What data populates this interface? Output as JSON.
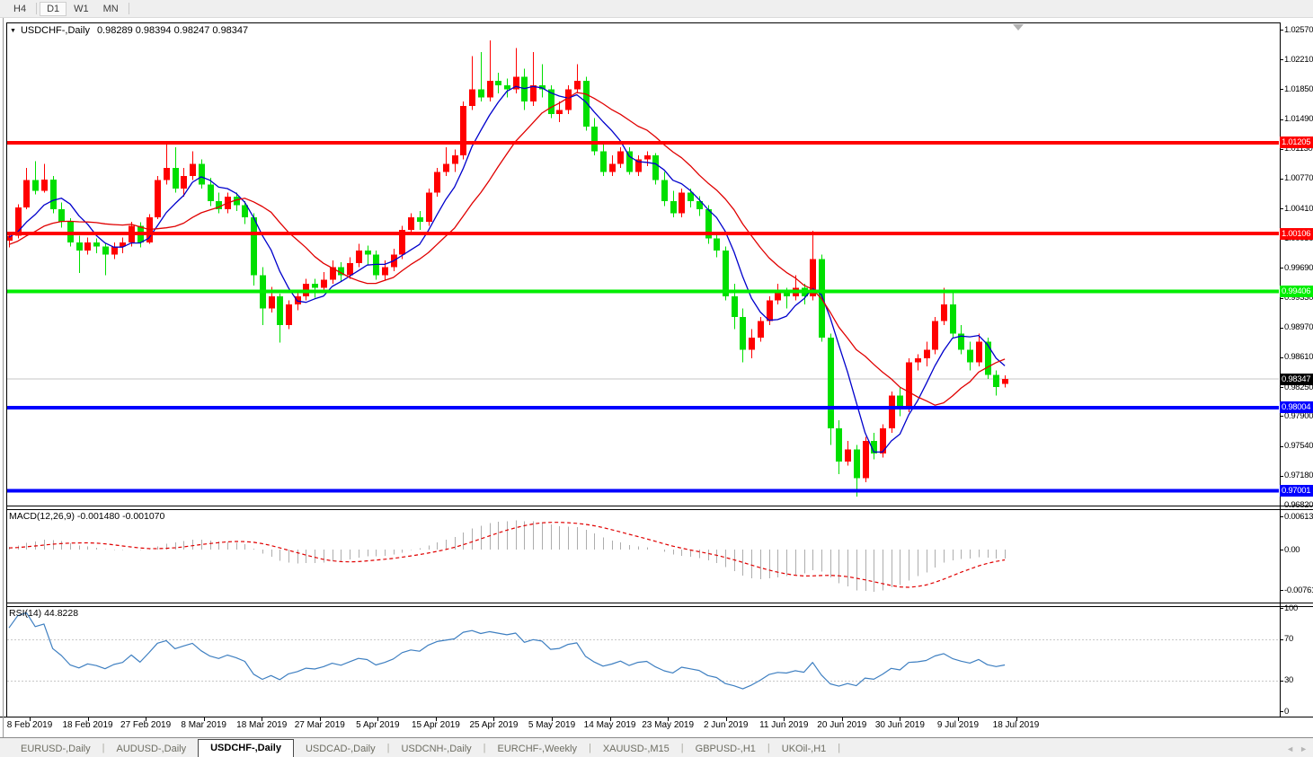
{
  "toolbar": {
    "timeframes": [
      {
        "label": "H4",
        "active": false
      },
      {
        "label": "D1",
        "active": true
      },
      {
        "label": "W1",
        "active": false
      },
      {
        "label": "MN",
        "active": false
      }
    ]
  },
  "chart": {
    "title_symbol": "USDCHF-,Daily",
    "title_ohlc": "0.98289 0.98394 0.98247 0.98347",
    "price_scale_ticks": [
      "1.02570",
      "1.02210",
      "1.01850",
      "1.01490",
      "1.01130",
      "1.00770",
      "1.00410",
      "1.00050",
      "0.99690",
      "0.99330",
      "0.98970",
      "0.98610",
      "0.98250",
      "0.97900",
      "0.97540",
      "0.97180",
      "0.96820"
    ],
    "levels": [
      {
        "value": "1.01205",
        "price": 1.01205,
        "color": "#FF0000",
        "text_color": "#FFFFFF"
      },
      {
        "value": "1.00106",
        "price": 1.00106,
        "color": "#FF0000",
        "text_color": "#FFFFFF"
      },
      {
        "value": "0.99406",
        "price": 0.99406,
        "color": "#00EE00",
        "text_color": "#FFFFFF"
      },
      {
        "value": "0.98004",
        "price": 0.98004,
        "color": "#0000FF",
        "text_color": "#FFFFFF"
      },
      {
        "value": "0.97001",
        "price": 0.97001,
        "color": "#0000FF",
        "text_color": "#FFFFFF"
      }
    ],
    "current_price": {
      "value": "0.98347",
      "price": 0.98347,
      "badge_bg": "#000000",
      "line_color": "#C4C4C4"
    },
    "time_scale_labels": [
      "8 Feb 2019",
      "18 Feb 2019",
      "27 Feb 2019",
      "8 Mar 2019",
      "18 Mar 2019",
      "27 Mar 2019",
      "5 Apr 2019",
      "15 Apr 2019",
      "25 Apr 2019",
      "5 May 2019",
      "14 May 2019",
      "23 May 2019",
      "2 Jun 2019",
      "11 Jun 2019",
      "20 Jun 2019",
      "30 Jun 2019",
      "9 Jul 2019",
      "18 Jul 2019"
    ],
    "macd": {
      "label": "MACD(12,26,9) -0.001480 -0.001070",
      "params": "12,26,9",
      "value": "-0.001480",
      "signal_value": "-0.001070",
      "scale_ticks": [
        {
          "label": "0.00613",
          "v": 0.00613
        },
        {
          "label": "0.00",
          "v": 0
        },
        {
          "label": "-0.00761",
          "v": -0.00761
        }
      ]
    },
    "rsi": {
      "label": "RSI(14) 44.8228",
      "period": "14",
      "value": "44.8228",
      "scale_ticks": [
        {
          "label": "100",
          "v": 100
        },
        {
          "label": "70",
          "v": 70
        },
        {
          "label": "30",
          "v": 30
        },
        {
          "label": "0",
          "v": 0
        }
      ],
      "dashed_levels": [
        70,
        30
      ]
    }
  },
  "chart_data": {
    "type": "candlestick",
    "symbol": "USDCHF-",
    "timeframe": "Daily",
    "title": "USDCHF-,Daily",
    "last_ohlc": {
      "open": 0.98289,
      "high": 0.98394,
      "low": 0.98247,
      "close": 0.98347
    },
    "bull_color": "#FF0000",
    "bear_color": "#00DF00",
    "ma_fast": {
      "type": "sma",
      "period": 6,
      "color": "#0000CC"
    },
    "ma_slow": {
      "type": "sma",
      "period": 14,
      "color": "#E00000"
    },
    "ylim": [
      0.9682,
      1.02646
    ],
    "x_labels": [
      "8 Feb 2019",
      "18 Feb 2019",
      "27 Feb 2019",
      "8 Mar 2019",
      "18 Mar 2019",
      "27 Mar 2019",
      "5 Apr 2019",
      "15 Apr 2019",
      "25 Apr 2019",
      "5 May 2019",
      "14 May 2019",
      "23 May 2019",
      "2 Jun 2019",
      "11 Jun 2019",
      "20 Jun 2019",
      "30 Jun 2019",
      "9 Jul 2019",
      "18 Jul 2019"
    ],
    "hlines": [
      {
        "price": 1.01205,
        "color": "#FF0000"
      },
      {
        "price": 1.00106,
        "color": "#FF0000"
      },
      {
        "price": 0.99406,
        "color": "#00EE00"
      },
      {
        "price": 0.98004,
        "color": "#0000FF"
      },
      {
        "price": 0.97001,
        "color": "#0000FF"
      }
    ],
    "macd_hist_color": "#ADADAD",
    "macd_signal_color": "#E00000",
    "macd_ylim": [
      -0.00972,
      0.00737
    ],
    "rsi_color": "#3E7FC1",
    "rsi_ylim": [
      0,
      100
    ],
    "candles": [
      [
        1.0002,
        1.0012,
        0.9994,
        1.0008
      ],
      [
        1.0008,
        1.0046,
        1.0005,
        1.0042
      ],
      [
        1.0042,
        1.009,
        1.004,
        1.0075
      ],
      [
        1.0075,
        1.0098,
        1.0058,
        1.0062
      ],
      [
        1.0062,
        1.0095,
        1.006,
        1.0076
      ],
      [
        1.0076,
        1.008,
        1.0035,
        1.004
      ],
      [
        1.004,
        1.0048,
        1.0018,
        1.0025
      ],
      [
        1.0025,
        1.0029,
        0.9995,
        1.0
      ],
      [
        1.0,
        1.0008,
        0.9963,
        0.999
      ],
      [
        0.999,
        1.0006,
        0.9985,
        1.0
      ],
      [
        1.0,
        1.0005,
        0.9987,
        0.9995
      ],
      [
        0.9995,
        0.9999,
        0.996,
        0.9985
      ],
      [
        0.9985,
        1.0,
        0.998,
        0.9995
      ],
      [
        0.9995,
        1.0006,
        0.9987,
        1.0
      ],
      [
        1.0,
        1.0025,
        0.9995,
        1.002
      ],
      [
        1.002,
        1.0024,
        0.9994,
        1.0
      ],
      [
        1.0,
        1.0034,
        0.9998,
        1.003
      ],
      [
        1.003,
        1.008,
        1.0028,
        1.0075
      ],
      [
        1.0075,
        1.012,
        1.007,
        1.009
      ],
      [
        1.009,
        1.0115,
        1.006,
        1.0065
      ],
      [
        1.0065,
        1.009,
        1.0055,
        1.008
      ],
      [
        1.008,
        1.011,
        1.0075,
        1.0095
      ],
      [
        1.0095,
        1.01,
        1.0065,
        1.007
      ],
      [
        1.007,
        1.0078,
        1.0044,
        1.005
      ],
      [
        1.005,
        1.006,
        1.0035,
        1.004
      ],
      [
        1.004,
        1.006,
        1.0035,
        1.0055
      ],
      [
        1.0055,
        1.006,
        1.0038,
        1.0045
      ],
      [
        1.0045,
        1.005,
        1.0022,
        1.003
      ],
      [
        1.003,
        1.0035,
        0.9948,
        0.996
      ],
      [
        0.996,
        0.997,
        0.99,
        0.992
      ],
      [
        0.992,
        0.9946,
        0.9915,
        0.9935
      ],
      [
        0.9935,
        0.9938,
        0.9879,
        0.99
      ],
      [
        0.99,
        0.993,
        0.9895,
        0.9925
      ],
      [
        0.9925,
        0.9942,
        0.9918,
        0.9935
      ],
      [
        0.9935,
        0.9956,
        0.993,
        0.995
      ],
      [
        0.995,
        0.9956,
        0.9933,
        0.9945
      ],
      [
        0.9945,
        0.9964,
        0.994,
        0.9955
      ],
      [
        0.9955,
        0.9978,
        0.995,
        0.997
      ],
      [
        0.997,
        0.9976,
        0.9952,
        0.996
      ],
      [
        0.996,
        0.9982,
        0.9956,
        0.9975
      ],
      [
        0.9975,
        0.9998,
        0.997,
        0.999
      ],
      [
        0.999,
        0.9996,
        0.9973,
        0.9985
      ],
      [
        0.9985,
        0.999,
        0.9955,
        0.996
      ],
      [
        0.996,
        0.9978,
        0.9955,
        0.997
      ],
      [
        0.997,
        0.9992,
        0.9965,
        0.9985
      ],
      [
        0.9985,
        1.002,
        0.998,
        1.0015
      ],
      [
        1.0015,
        1.0035,
        1.001,
        1.003
      ],
      [
        1.003,
        1.0038,
        1.0015,
        1.0025
      ],
      [
        1.0025,
        1.0065,
        1.002,
        1.006
      ],
      [
        1.006,
        1.009,
        1.0055,
        1.0085
      ],
      [
        1.0085,
        1.0115,
        1.008,
        1.0095
      ],
      [
        1.0095,
        1.0112,
        1.0085,
        1.0105
      ],
      [
        1.0105,
        1.017,
        1.01,
        1.0165
      ],
      [
        1.0165,
        1.0225,
        1.016,
        1.0185
      ],
      [
        1.0185,
        1.023,
        1.017,
        1.0175
      ],
      [
        1.0175,
        1.0244,
        1.017,
        1.0195
      ],
      [
        1.0195,
        1.0205,
        1.018,
        1.019
      ],
      [
        1.019,
        1.0198,
        1.0175,
        1.0185
      ],
      [
        1.0185,
        1.0235,
        1.018,
        1.02
      ],
      [
        1.02,
        1.021,
        1.016,
        1.017
      ],
      [
        1.017,
        1.023,
        1.0165,
        1.019
      ],
      [
        1.019,
        1.0215,
        1.0175,
        1.0185
      ],
      [
        1.0185,
        1.019,
        1.015,
        1.0155
      ],
      [
        1.0155,
        1.017,
        1.0145,
        1.016
      ],
      [
        1.016,
        1.019,
        1.0155,
        1.0185
      ],
      [
        1.0185,
        1.0215,
        1.018,
        1.0195
      ],
      [
        1.0195,
        1.02,
        1.0135,
        1.014
      ],
      [
        1.014,
        1.015,
        1.0105,
        1.011
      ],
      [
        1.011,
        1.0122,
        1.008,
        1.0085
      ],
      [
        1.0085,
        1.0105,
        1.008,
        1.0095
      ],
      [
        1.0095,
        1.0115,
        1.009,
        1.011
      ],
      [
        1.011,
        1.0115,
        1.0082,
        1.0085
      ],
      [
        1.0085,
        1.0105,
        1.008,
        1.01
      ],
      [
        1.01,
        1.011,
        1.0092,
        1.0105
      ],
      [
        1.0105,
        1.0108,
        1.007,
        1.0075
      ],
      [
        1.0075,
        1.0085,
        1.0044,
        1.005
      ],
      [
        1.005,
        1.0062,
        1.003,
        1.0035
      ],
      [
        1.0035,
        1.0065,
        1.003,
        1.006
      ],
      [
        1.006,
        1.0065,
        1.0042,
        1.005
      ],
      [
        1.005,
        1.0056,
        1.0032,
        1.004
      ],
      [
        1.004,
        1.0045,
        0.9998,
        1.0005
      ],
      [
        1.0005,
        1.001,
        0.9982,
        0.999
      ],
      [
        0.999,
        0.9995,
        0.993,
        0.9935
      ],
      [
        0.9935,
        0.995,
        0.9895,
        0.991
      ],
      [
        0.991,
        0.992,
        0.9855,
        0.987
      ],
      [
        0.987,
        0.9895,
        0.986,
        0.9885
      ],
      [
        0.9885,
        0.991,
        0.988,
        0.9905
      ],
      [
        0.9905,
        0.9935,
        0.99,
        0.993
      ],
      [
        0.993,
        0.995,
        0.9925,
        0.994
      ],
      [
        0.994,
        0.9945,
        0.992,
        0.9935
      ],
      [
        0.9935,
        0.996,
        0.993,
        0.9945
      ],
      [
        0.9945,
        0.995,
        0.9925,
        0.9935
      ],
      [
        0.9935,
        1.0014,
        0.993,
        0.998
      ],
      [
        0.998,
        0.9985,
        0.988,
        0.9885
      ],
      [
        0.9885,
        0.989,
        0.9755,
        0.9775
      ],
      [
        0.9775,
        0.9785,
        0.972,
        0.9735
      ],
      [
        0.9735,
        0.976,
        0.973,
        0.975
      ],
      [
        0.975,
        0.9755,
        0.9693,
        0.9715
      ],
      [
        0.9715,
        0.9765,
        0.971,
        0.976
      ],
      [
        0.976,
        0.977,
        0.9738,
        0.9745
      ],
      [
        0.9745,
        0.978,
        0.974,
        0.9775
      ],
      [
        0.9775,
        0.982,
        0.977,
        0.9815
      ],
      [
        0.9815,
        0.9825,
        0.979,
        0.98
      ],
      [
        0.98,
        0.986,
        0.9795,
        0.9855
      ],
      [
        0.9855,
        0.9865,
        0.9845,
        0.986
      ],
      [
        0.986,
        0.988,
        0.985,
        0.987
      ],
      [
        0.987,
        0.991,
        0.9865,
        0.9905
      ],
      [
        0.9905,
        0.9945,
        0.99,
        0.9925
      ],
      [
        0.9925,
        0.994,
        0.9885,
        0.989
      ],
      [
        0.989,
        0.99,
        0.9865,
        0.987
      ],
      [
        0.987,
        0.988,
        0.9845,
        0.9855
      ],
      [
        0.9855,
        0.989,
        0.985,
        0.988
      ],
      [
        0.988,
        0.9885,
        0.9835,
        0.984
      ],
      [
        0.984,
        0.9845,
        0.9815,
        0.9825
      ],
      [
        0.98289,
        0.98394,
        0.98247,
        0.98347
      ]
    ]
  },
  "tabs": {
    "items": [
      "EURUSD-,Daily",
      "AUDUSD-,Daily",
      "USDCHF-,Daily",
      "USDCAD-,Daily",
      "USDCNH-,Daily",
      "EURCHF-,Weekly",
      "XAUUSD-,M15",
      "GBPUSD-,H1",
      "UKOil-,H1"
    ],
    "active_index": 2
  }
}
